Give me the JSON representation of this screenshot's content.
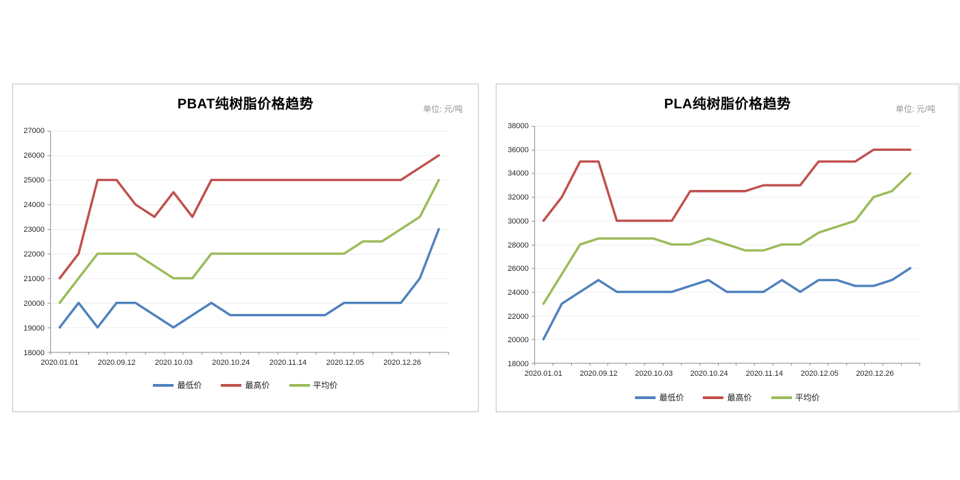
{
  "colors": {
    "min_series": "#4f81bd",
    "max_series": "#c0504d",
    "avg_series": "#9bbb59",
    "gridline": "#ececec",
    "axis": "#898989",
    "tick_text": "#262626",
    "title_text": "#000000",
    "unit_text": "#959595",
    "card_border": "#c2c2c2"
  },
  "charts": [
    {
      "title": "PBAT纯树脂价格趋势",
      "unit_label": "单位: 元/吨",
      "chart_data": {
        "type": "line",
        "grid": true,
        "legend_position": "bottom",
        "n_points": 21,
        "x_tick_labels": [
          "2020.01.01",
          "2020.09.12",
          "2020.10.03",
          "2020.10.24",
          "2020.11.14",
          "2020.12.05",
          "2020.12.26"
        ],
        "x_labeled_indices": [
          0,
          3,
          6,
          9,
          12,
          15,
          18
        ],
        "ylim": [
          18000,
          27000
        ],
        "y_ticks": [
          18000,
          19000,
          20000,
          21000,
          22000,
          23000,
          24000,
          25000,
          26000,
          27000
        ],
        "series": [
          {
            "name": "最低价",
            "color": "#4f81bd",
            "values": [
              19000,
              20000,
              19000,
              20000,
              20000,
              19500,
              19000,
              19500,
              20000,
              19500,
              19500,
              19500,
              19500,
              19500,
              19500,
              20000,
              20000,
              20000,
              20000,
              21000,
              23000
            ]
          },
          {
            "name": "最高价",
            "color": "#c0504d",
            "values": [
              21000,
              22000,
              25000,
              25000,
              24000,
              23500,
              24500,
              23500,
              25000,
              25000,
              25000,
              25000,
              25000,
              25000,
              25000,
              25000,
              25000,
              25000,
              25000,
              25500,
              26000
            ]
          },
          {
            "name": "平均价",
            "color": "#9bbb59",
            "values": [
              20000,
              21000,
              22000,
              22000,
              22000,
              21500,
              21000,
              21000,
              22000,
              22000,
              22000,
              22000,
              22000,
              22000,
              22000,
              22000,
              22500,
              22500,
              23000,
              23500,
              25000
            ]
          }
        ]
      }
    },
    {
      "title": "PLA纯树脂价格趋势",
      "unit_label": "单位: 元/吨",
      "chart_data": {
        "type": "line",
        "grid": true,
        "legend_position": "bottom",
        "n_points": 21,
        "x_tick_labels": [
          "2020.01.01",
          "2020.09.12",
          "2020.10.03",
          "2020.10.24",
          "2020.11.14",
          "2020.12.05",
          "2020.12.26"
        ],
        "x_labeled_indices": [
          0,
          3,
          6,
          9,
          12,
          15,
          18
        ],
        "ylim": [
          18000,
          38000
        ],
        "y_ticks": [
          18000,
          20000,
          22000,
          24000,
          26000,
          28000,
          30000,
          32000,
          34000,
          36000,
          38000
        ],
        "series": [
          {
            "name": "最低价",
            "color": "#4f81bd",
            "values": [
              20000,
              23000,
              24000,
              25000,
              24000,
              24000,
              24000,
              24000,
              24500,
              25000,
              24000,
              24000,
              24000,
              25000,
              24000,
              25000,
              25000,
              24500,
              24500,
              25000,
              26000
            ]
          },
          {
            "name": "最高价",
            "color": "#c0504d",
            "values": [
              30000,
              32000,
              35000,
              35000,
              30000,
              30000,
              30000,
              30000,
              32500,
              32500,
              32500,
              32500,
              33000,
              33000,
              33000,
              35000,
              35000,
              35000,
              36000,
              36000,
              36000
            ]
          },
          {
            "name": "平均价",
            "color": "#9bbb59",
            "values": [
              23000,
              25500,
              28000,
              28500,
              28500,
              28500,
              28500,
              28000,
              28000,
              28500,
              28000,
              27500,
              27500,
              28000,
              28000,
              29000,
              29500,
              30000,
              32000,
              32500,
              34000
            ]
          }
        ]
      }
    }
  ]
}
